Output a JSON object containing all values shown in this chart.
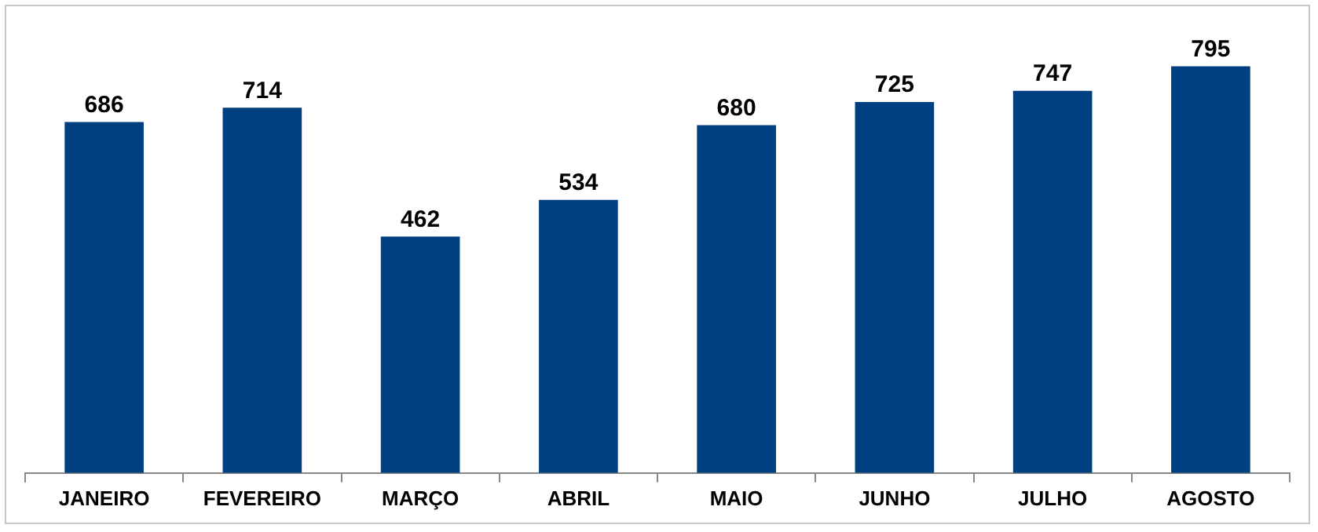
{
  "chart_data": {
    "type": "bar",
    "categories": [
      "JANEIRO",
      "FEVEREIRO",
      "MARÇO",
      "ABRIL",
      "MAIO",
      "JUNHO",
      "JULHO",
      "AGOSTO"
    ],
    "values": [
      686,
      714,
      462,
      534,
      680,
      725,
      747,
      795
    ],
    "color": "#003f80",
    "data_labels": true,
    "grid": false,
    "legend": false
  }
}
